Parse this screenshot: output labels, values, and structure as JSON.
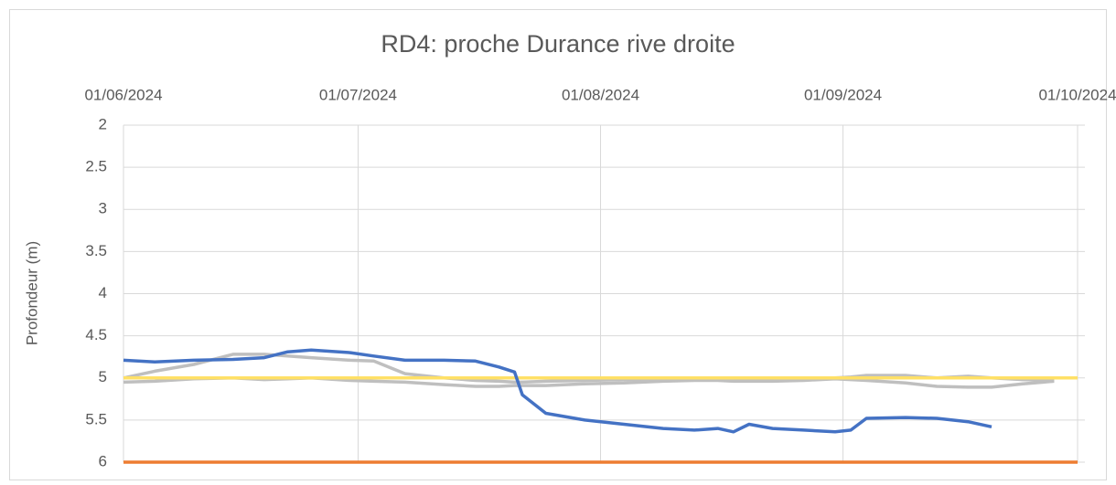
{
  "chart_data": {
    "type": "line",
    "title": "RD4: proche Durance rive droite",
    "y_label": "Profondeur (m)",
    "x": [
      "2024-06-01",
      "2024-06-05",
      "2024-06-10",
      "2024-06-15",
      "2024-06-19",
      "2024-06-22",
      "2024-06-25",
      "2024-06-30",
      "2024-07-03",
      "2024-07-07",
      "2024-07-12",
      "2024-07-16",
      "2024-07-19",
      "2024-07-21",
      "2024-07-22",
      "2024-07-25",
      "2024-07-30",
      "2024-08-04",
      "2024-08-09",
      "2024-08-13",
      "2024-08-16",
      "2024-08-18",
      "2024-08-20",
      "2024-08-23",
      "2024-08-27",
      "2024-08-31",
      "2024-09-02",
      "2024-09-04",
      "2024-09-09",
      "2024-09-13",
      "2024-09-17",
      "2024-09-20",
      "2024-09-24",
      "2024-09-28",
      "2024-10-01"
    ],
    "series": [
      {
        "color": "#bfbfbf",
        "values": [
          5.0,
          4.92,
          4.84,
          4.72,
          4.72,
          4.74,
          4.76,
          4.79,
          4.8,
          4.95,
          5.0,
          5.03,
          5.04,
          5.05,
          5.05,
          5.04,
          5.03,
          5.02,
          5.02,
          5.02,
          5.02,
          5.02,
          5.02,
          5.02,
          5.02,
          5.0,
          4.99,
          4.97,
          4.97,
          5.0,
          4.98,
          5.0,
          5.02,
          5.03,
          null
        ]
      },
      {
        "color": "#bfbfbf",
        "values": [
          5.05,
          5.04,
          5.01,
          5.0,
          5.02,
          5.01,
          5.0,
          5.03,
          5.04,
          5.05,
          5.08,
          5.1,
          5.1,
          5.09,
          5.09,
          5.09,
          5.07,
          5.06,
          5.04,
          5.03,
          5.03,
          5.04,
          5.04,
          5.04,
          5.03,
          5.01,
          5.02,
          5.03,
          5.06,
          5.1,
          5.11,
          5.11,
          5.07,
          5.04,
          null
        ]
      },
      {
        "color": "#ffe066",
        "values": [
          5,
          5,
          5,
          5,
          5,
          5,
          5,
          5,
          5,
          5,
          5,
          5,
          5,
          5,
          5,
          5,
          5,
          5,
          5,
          5,
          5,
          5,
          5,
          5,
          5,
          5,
          5,
          5,
          5,
          5,
          5,
          5,
          5,
          5,
          5
        ]
      },
      {
        "color": "#ed7d31",
        "values": [
          6,
          6,
          6,
          6,
          6,
          6,
          6,
          6,
          6,
          6,
          6,
          6,
          6,
          6,
          6,
          6,
          6,
          6,
          6,
          6,
          6,
          6,
          6,
          6,
          6,
          6,
          6,
          6,
          6,
          6,
          6,
          6,
          6,
          6,
          6
        ]
      },
      {
        "color": "#4472c4",
        "values": [
          4.79,
          4.81,
          4.79,
          4.78,
          4.76,
          4.69,
          4.67,
          4.7,
          4.74,
          4.79,
          4.79,
          4.8,
          4.87,
          4.93,
          5.2,
          5.42,
          5.5,
          5.55,
          5.6,
          5.62,
          5.6,
          5.64,
          5.55,
          5.6,
          5.62,
          5.64,
          5.62,
          5.48,
          5.47,
          5.48,
          5.52,
          5.58,
          null,
          null,
          null
        ]
      }
    ],
    "xlim": [
      "2024-06-01",
      "2024-10-01"
    ],
    "xticks": [
      {
        "value": "2024-06-01",
        "label": "01/06/2024"
      },
      {
        "value": "2024-07-01",
        "label": "01/07/2024"
      },
      {
        "value": "2024-08-01",
        "label": "01/08/2024"
      },
      {
        "value": "2024-09-01",
        "label": "01/09/2024"
      },
      {
        "value": "2024-10-01",
        "label": "01/10/2024"
      }
    ],
    "ylim": [
      2,
      6
    ],
    "y_inverted": true,
    "yticks": [
      2,
      {
        "value": 2.5,
        "label": "2.5"
      },
      3,
      {
        "value": 3.5,
        "label": "3.5"
      },
      4,
      {
        "value": 4.5,
        "label": "4.5"
      },
      5,
      {
        "value": 5.5,
        "label": "5.5"
      },
      6
    ],
    "grid": true
  }
}
